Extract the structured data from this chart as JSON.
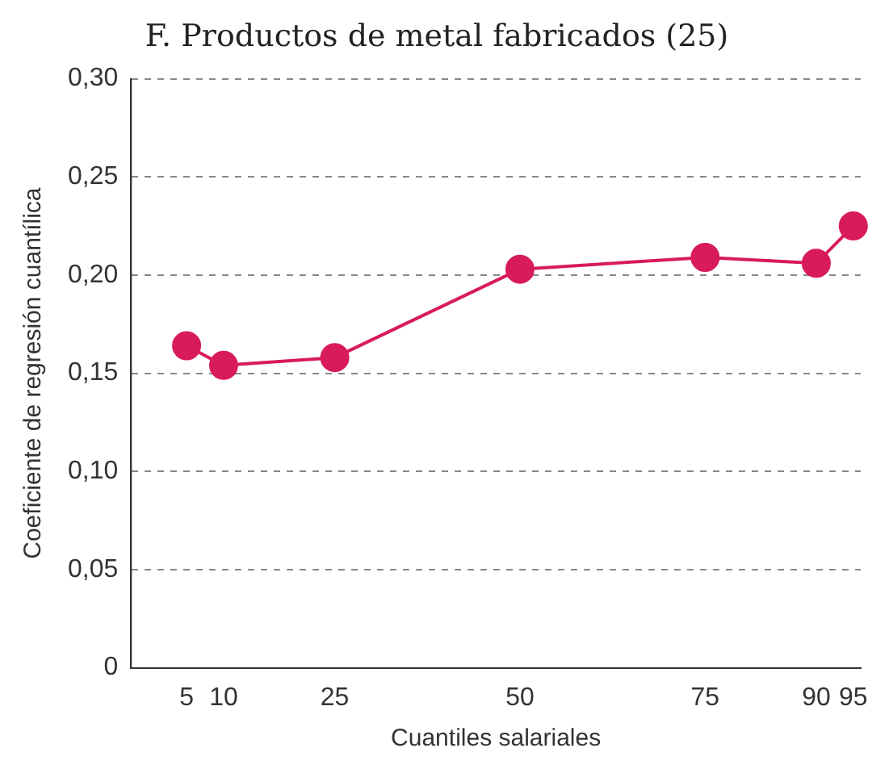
{
  "chart_data": {
    "type": "line",
    "title": "F. Productos de metal fabricados (25)",
    "xlabel": "Cuantiles salariales",
    "ylabel": "Coeficiente de regresión cuantílica",
    "x": [
      5,
      10,
      25,
      50,
      75,
      90,
      95
    ],
    "series": [
      {
        "color": "#d81b5a",
        "values": [
          0.164,
          0.154,
          0.158,
          0.203,
          0.209,
          0.206,
          0.225
        ]
      }
    ],
    "xlim": [
      -2.5,
      96
    ],
    "xticks": [
      5,
      10,
      25,
      50,
      75,
      90,
      95
    ],
    "ylim": [
      0,
      0.3
    ],
    "yticks": [
      {
        "value": 0,
        "label": "0"
      },
      {
        "value": 0.05,
        "label": "0,05"
      },
      {
        "value": 0.1,
        "label": "0,10"
      },
      {
        "value": 0.15,
        "label": "0,15"
      },
      {
        "value": 0.2,
        "label": "0,20"
      },
      {
        "value": 0.25,
        "label": "0,25"
      },
      {
        "value": 0.3,
        "label": "0,30"
      }
    ],
    "grid": "y",
    "legend": false,
    "marker": "circle",
    "line_style": "solid"
  }
}
